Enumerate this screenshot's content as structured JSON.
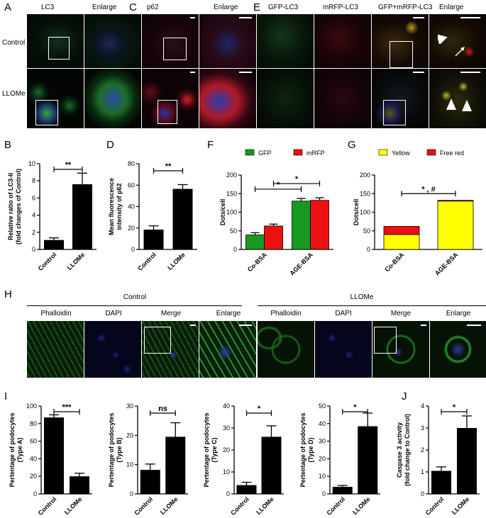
{
  "panels": {
    "A": "A",
    "B": "B",
    "C": "C",
    "D": "D",
    "E": "E",
    "F": "F",
    "G": "G",
    "H": "H",
    "I": "I",
    "J": "J"
  },
  "top_headers": {
    "a_lc3": "LC3",
    "a_enlarge": "Enlarge",
    "c_p62": "p62",
    "c_enlarge": "Enlarge",
    "e_gfp": "GFP-LC3",
    "e_mrfp": "mRFP-LC3",
    "e_merge": "GFP+mRFP-LC3",
    "e_enlarge": "Enlarge"
  },
  "row_labels": {
    "control": "Control",
    "llome": "LLOMe"
  },
  "h_section": {
    "control": "Control",
    "llome": "LLOMe",
    "cols": [
      "Phalloidin",
      "DAPI",
      "Merge",
      "Enlarge",
      "Phalloidin",
      "DAPI",
      "Merge",
      "Enlarge"
    ]
  },
  "colors": {
    "bar": "#000000",
    "gfp": "#169b20",
    "mrfp": "#ee1010",
    "yellow": "#ffff00",
    "free_red": "#ee1010"
  },
  "chart_data": [
    {
      "id": "B",
      "type": "bar",
      "categories": [
        "Control",
        "LLOMe"
      ],
      "values": [
        1.1,
        7.6
      ],
      "errors": [
        0.25,
        1.3
      ],
      "ylabel": "Relative ratio of LC3-II\n(fold changes of Control)",
      "ylim": [
        0,
        10
      ],
      "yticks": [
        "0",
        "2",
        "4",
        "6",
        "8",
        "10"
      ],
      "significance": [
        {
          "between": [
            0,
            1
          ],
          "label": "**"
        }
      ]
    },
    {
      "id": "D",
      "type": "bar",
      "categories": [
        "Control",
        "LLOMe"
      ],
      "values": [
        18.5,
        56.5
      ],
      "errors": [
        3.5,
        4
      ],
      "ylabel": "Mean fluorescence\nintensity of p62",
      "ylim": [
        0,
        80
      ],
      "yticks": [
        "0",
        "20",
        "40",
        "60",
        "80"
      ],
      "significance": [
        {
          "between": [
            0,
            1
          ],
          "label": "**"
        }
      ]
    },
    {
      "id": "F",
      "type": "bar",
      "categories": [
        "Co-BSA",
        "AGE-BSA"
      ],
      "series": [
        {
          "name": "GFP",
          "values": [
            39,
            130
          ],
          "errors": [
            6,
            7
          ]
        },
        {
          "name": "mRFP",
          "values": [
            63,
            132
          ],
          "errors": [
            5,
            7
          ]
        }
      ],
      "ylabel": "Dots/cell",
      "ylim": [
        0,
        200
      ],
      "yticks": [
        "0",
        "50",
        "100",
        "150",
        "200"
      ],
      "legend": "top",
      "significance": [
        {
          "between": [
            "Co-BSA GFP",
            "AGE-BSA GFP"
          ],
          "label": "*"
        },
        {
          "between": [
            "Co-BSA mRFP",
            "AGE-BSA mRFP"
          ],
          "label": "*"
        }
      ]
    },
    {
      "id": "G",
      "type": "bar",
      "stacked": true,
      "categories": [
        "Co-BSA",
        "AGE-BSA"
      ],
      "series": [
        {
          "name": "Yellow",
          "values": [
            40,
            130
          ]
        },
        {
          "name": "Free red",
          "values": [
            22,
            2
          ]
        }
      ],
      "ylabel": "Dots/cell",
      "ylim": [
        0,
        200
      ],
      "yticks": [
        "0",
        "50",
        "100",
        "150",
        "200"
      ],
      "legend": "top",
      "significance": [
        {
          "between": [
            0,
            1
          ],
          "label": "* , #"
        }
      ]
    },
    {
      "id": "I1",
      "type": "bar",
      "categories": [
        "Control",
        "LLOMe"
      ],
      "values": [
        87,
        20
      ],
      "errors": [
        3,
        3.5
      ],
      "ylabel": "Pertentage of podocytes\n(Type A)",
      "ylim": [
        0,
        100
      ],
      "yticks": [
        "0",
        "20",
        "40",
        "60",
        "80",
        "100"
      ],
      "significance": [
        {
          "between": [
            0,
            1
          ],
          "label": "***"
        }
      ]
    },
    {
      "id": "I2",
      "type": "bar",
      "categories": [
        "Control",
        "LLOMe"
      ],
      "values": [
        8.2,
        19.5
      ],
      "errors": [
        2,
        4.8
      ],
      "ylabel": "Pertentage of podocytes\n(Type B)",
      "ylim": [
        0,
        30
      ],
      "yticks": [
        "0",
        "10",
        "20",
        "30"
      ],
      "significance": [
        {
          "between": [
            0,
            1
          ],
          "label": "ns"
        }
      ]
    },
    {
      "id": "I3",
      "type": "bar",
      "categories": [
        "Control",
        "LLOMe"
      ],
      "values": [
        4,
        26
      ],
      "errors": [
        1.3,
        5
      ],
      "ylabel": "Pertentage of podocytes\n(Type C)",
      "ylim": [
        0,
        40
      ],
      "yticks": [
        "0",
        "10",
        "20",
        "30",
        "40"
      ],
      "significance": [
        {
          "between": [
            0,
            1
          ],
          "label": "*"
        }
      ]
    },
    {
      "id": "I4",
      "type": "bar",
      "categories": [
        "Control",
        "LLOMe"
      ],
      "values": [
        4,
        38.5
      ],
      "errors": [
        0.8,
        7.5
      ],
      "ylabel": "Pertentage of podocytes\n(Type D)",
      "ylim": [
        0,
        50
      ],
      "yticks": [
        "0",
        "10",
        "20",
        "30",
        "40",
        "50"
      ],
      "significance": [
        {
          "between": [
            0,
            1
          ],
          "label": "*"
        }
      ]
    },
    {
      "id": "J",
      "type": "bar",
      "categories": [
        "Control",
        "LLOMe"
      ],
      "values": [
        1.05,
        3.0
      ],
      "errors": [
        0.18,
        0.55
      ],
      "ylabel": "Caspase 3 activity\n(fold change to Control)",
      "ylim": [
        0,
        4
      ],
      "yticks": [
        "0",
        "1",
        "2",
        "3",
        "4"
      ],
      "significance": [
        {
          "between": [
            0,
            1
          ],
          "label": "*"
        }
      ]
    }
  ]
}
